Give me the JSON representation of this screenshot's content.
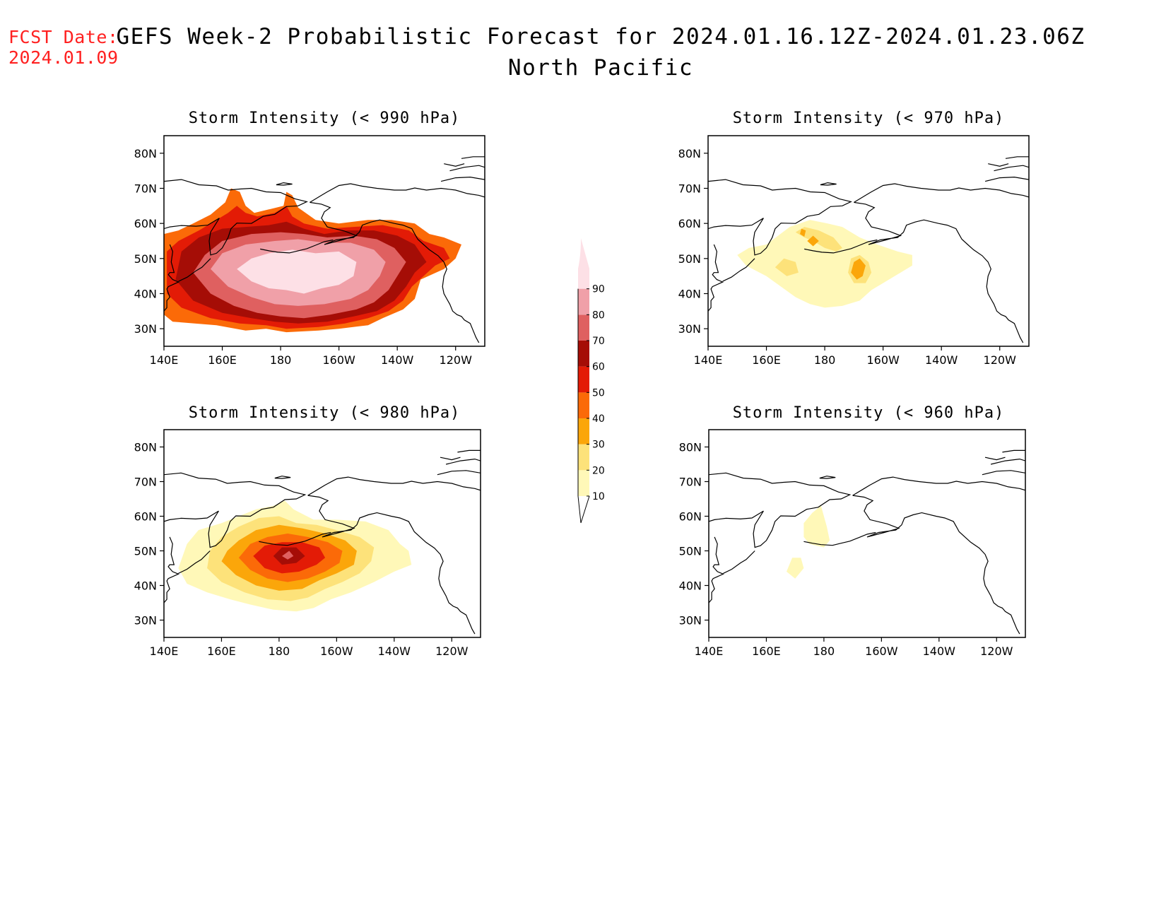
{
  "header": {
    "fcst_label": "FCST Date:",
    "fcst_date": "2024.01.09",
    "title": "GEFS Week-2 Probabilistic Forecast for 2024.01.16.12Z-2024.01.23.06Z",
    "subtitle": "North Pacific"
  },
  "axes": {
    "lat_labels": [
      "80N",
      "70N",
      "60N",
      "50N",
      "40N",
      "30N"
    ],
    "lon_labels": [
      "140E",
      "160E",
      "180",
      "160W",
      "140W",
      "120W"
    ]
  },
  "colorbar": {
    "levels": [
      "10",
      "20",
      "30",
      "40",
      "50",
      "60",
      "70",
      "80",
      "90"
    ],
    "colors": [
      "#fff8b8",
      "#fde27a",
      "#fba60a",
      "#fb6a08",
      "#e31b06",
      "#a50d06",
      "#df6060",
      "#f0a0a8",
      "#fde0e6"
    ]
  },
  "panels": [
    {
      "title": "Storm Intensity (< 990 hPa)"
    },
    {
      "title": "Storm Intensity (< 970 hPa)"
    },
    {
      "title": "Storm Intensity (< 980 hPa)"
    },
    {
      "title": "Storm Intensity (< 960 hPa)"
    }
  ]
}
